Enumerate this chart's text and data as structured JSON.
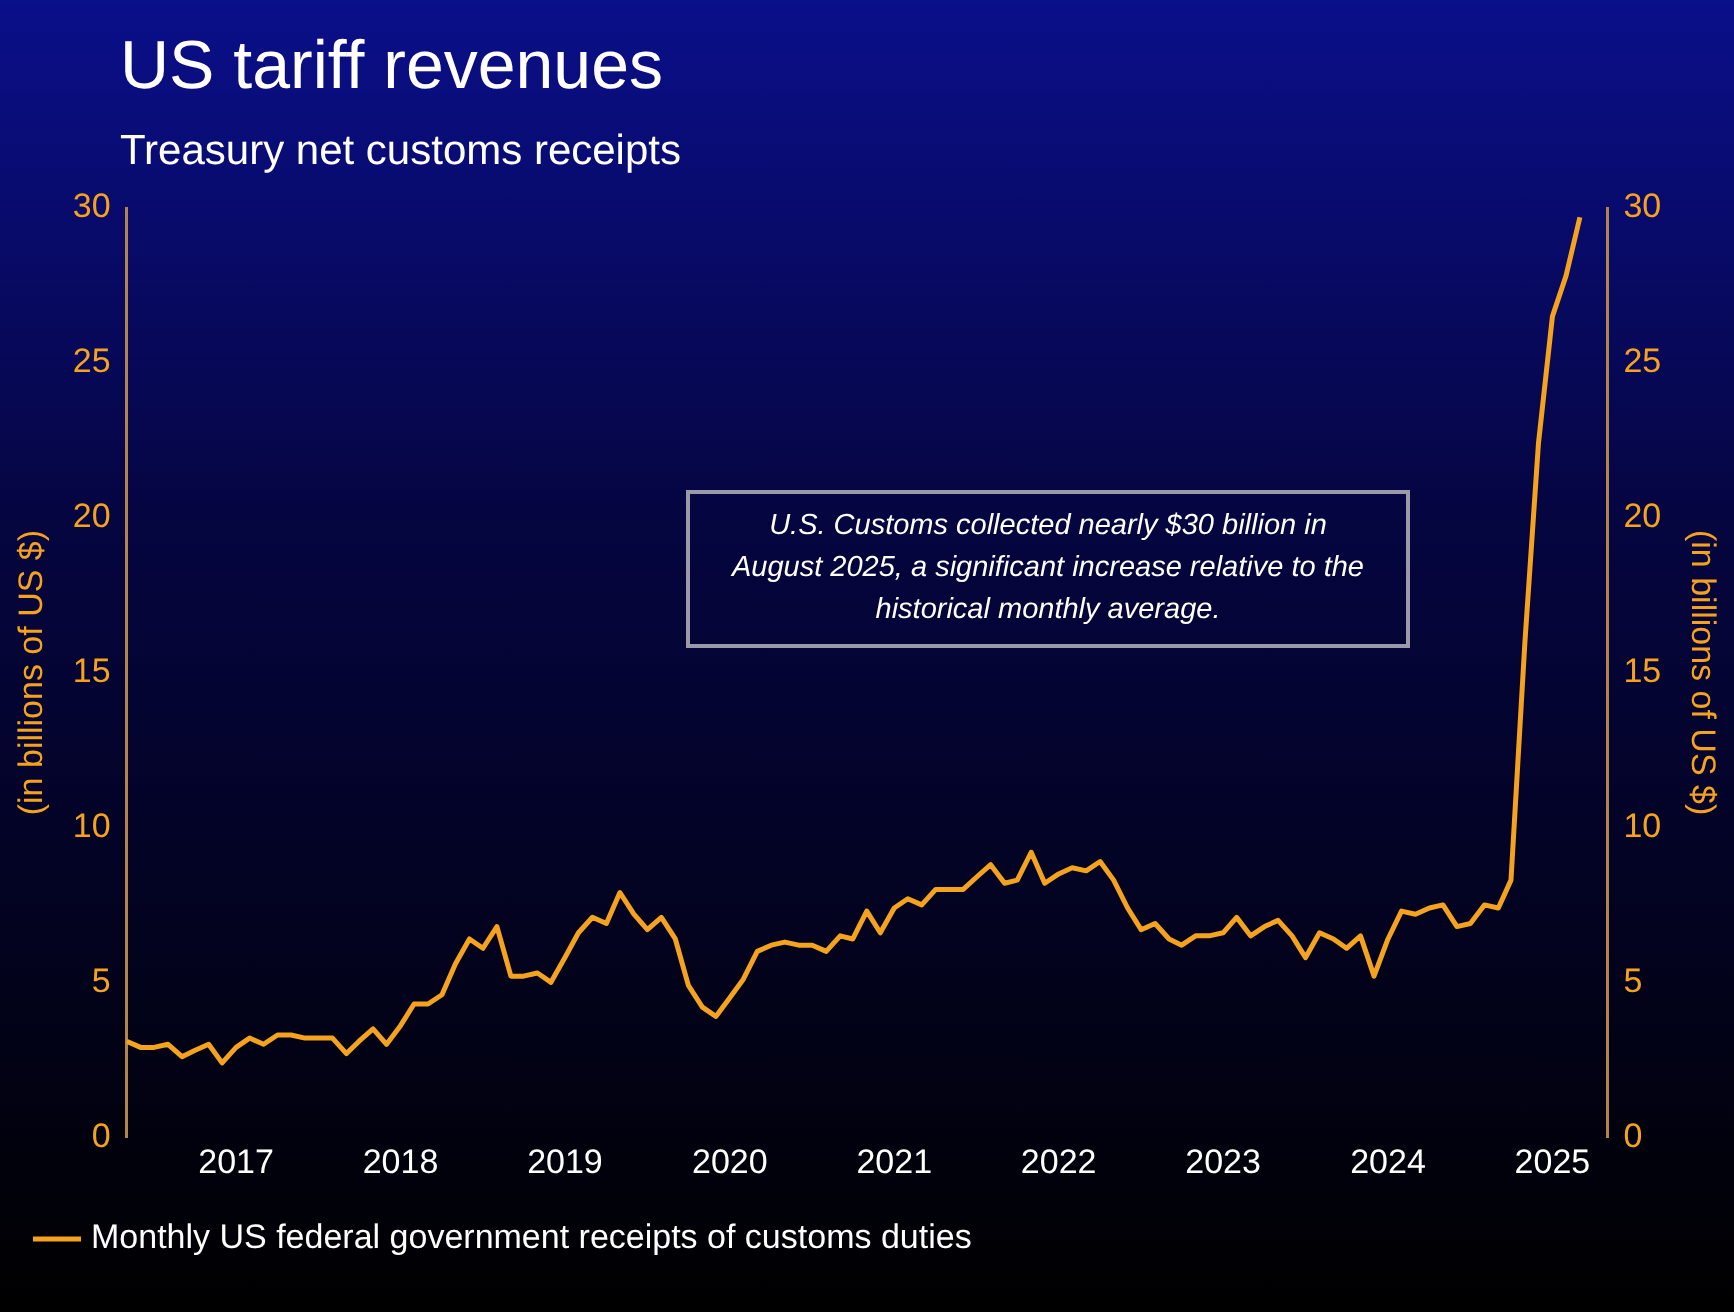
{
  "chart_data": {
    "type": "line",
    "title": "US tariff revenues",
    "subtitle": "Treasury net customs receipts",
    "ylabel": "(in billions of US $)",
    "y2label": "(in billions of US $)",
    "annotations": [
      "U.S. Customs collected nearly $30 billion in August 2025, a significant increase relative to the historical monthly average."
    ],
    "x": [
      "2016-10",
      "2016-11",
      "2016-12",
      "2017-01",
      "2017-02",
      "2017-03",
      "2017-04",
      "2017-05",
      "2017-06",
      "2017-07",
      "2017-08",
      "2017-09",
      "2017-10",
      "2017-11",
      "2017-12",
      "2018-01",
      "2018-02",
      "2018-03",
      "2018-04",
      "2018-05",
      "2018-06",
      "2018-07",
      "2018-08",
      "2018-09",
      "2018-10",
      "2018-11",
      "2018-12",
      "2019-01",
      "2019-02",
      "2019-03",
      "2019-04",
      "2019-05",
      "2019-06",
      "2019-07",
      "2019-08",
      "2019-09",
      "2019-10",
      "2019-11",
      "2019-12",
      "2020-01",
      "2020-02",
      "2020-03",
      "2020-04",
      "2020-05",
      "2020-06",
      "2020-07",
      "2020-08",
      "2020-09",
      "2020-10",
      "2020-11",
      "2020-12",
      "2021-01",
      "2021-02",
      "2021-03",
      "2021-04",
      "2021-05",
      "2021-06",
      "2021-07",
      "2021-08",
      "2021-09",
      "2021-10",
      "2021-11",
      "2021-12",
      "2022-01",
      "2022-02",
      "2022-03",
      "2022-04",
      "2022-05",
      "2022-06",
      "2022-07",
      "2022-08",
      "2022-09",
      "2022-10",
      "2022-11",
      "2022-12",
      "2023-01",
      "2023-02",
      "2023-03",
      "2023-04",
      "2023-05",
      "2023-06",
      "2023-07",
      "2023-08",
      "2023-09",
      "2023-10",
      "2023-11",
      "2023-12",
      "2024-01",
      "2024-02",
      "2024-03",
      "2024-04",
      "2024-05",
      "2024-06",
      "2024-07",
      "2024-08",
      "2024-09",
      "2024-10",
      "2024-11",
      "2024-12",
      "2025-01",
      "2025-02",
      "2025-03",
      "2025-04",
      "2025-05",
      "2025-06",
      "2025-07",
      "2025-08"
    ],
    "series": [
      {
        "name": "Monthly US federal government receipts of customs duties",
        "color": "#f5a21e",
        "values": [
          3.1,
          2.9,
          2.9,
          3.0,
          2.6,
          2.8,
          3.0,
          2.4,
          2.9,
          3.2,
          3.0,
          3.3,
          3.3,
          3.2,
          3.2,
          3.2,
          2.7,
          3.1,
          3.5,
          3.0,
          3.6,
          4.3,
          4.3,
          4.6,
          5.6,
          6.4,
          6.1,
          6.8,
          5.2,
          5.2,
          5.3,
          5.0,
          5.8,
          6.6,
          7.1,
          6.9,
          7.9,
          7.2,
          6.7,
          7.1,
          6.4,
          4.9,
          4.2,
          3.9,
          4.5,
          5.1,
          6.0,
          6.2,
          6.3,
          6.2,
          6.2,
          6.0,
          6.5,
          6.4,
          7.3,
          6.6,
          7.4,
          7.7,
          7.5,
          8.0,
          8.0,
          8.0,
          8.4,
          8.8,
          8.2,
          8.3,
          9.2,
          8.2,
          8.5,
          8.7,
          8.6,
          8.9,
          8.3,
          7.4,
          6.7,
          6.9,
          6.4,
          6.2,
          6.5,
          6.5,
          6.6,
          7.1,
          6.5,
          6.8,
          7.0,
          6.5,
          5.8,
          6.6,
          6.4,
          6.1,
          6.5,
          5.2,
          6.4,
          7.3,
          7.2,
          7.4,
          7.5,
          6.8,
          6.9,
          7.5,
          7.4,
          8.3,
          16,
          22.4,
          26.5,
          27.8,
          29.7
        ]
      }
    ],
    "xlim": [
      "2016-10",
      "2025-10"
    ],
    "xticks": [
      {
        "value": "2017-06",
        "label": "2017"
      },
      {
        "value": "2018-06",
        "label": "2018"
      },
      {
        "value": "2019-06",
        "label": "2019"
      },
      {
        "value": "2020-06",
        "label": "2020"
      },
      {
        "value": "2021-06",
        "label": "2021"
      },
      {
        "value": "2022-06",
        "label": "2022"
      },
      {
        "value": "2023-06",
        "label": "2023"
      },
      {
        "value": "2024-06",
        "label": "2024"
      },
      {
        "value": "2025-06",
        "label": "2025"
      }
    ],
    "ylim": [
      0,
      30
    ],
    "yticks": [
      0,
      5,
      10,
      15,
      20,
      25,
      30
    ],
    "y2lim": [
      0,
      30
    ],
    "y2ticks": [
      0,
      5,
      10,
      15,
      20,
      25,
      30
    ],
    "grid": false,
    "legend": "bottom left",
    "marker": "none",
    "line_style": "solid"
  }
}
